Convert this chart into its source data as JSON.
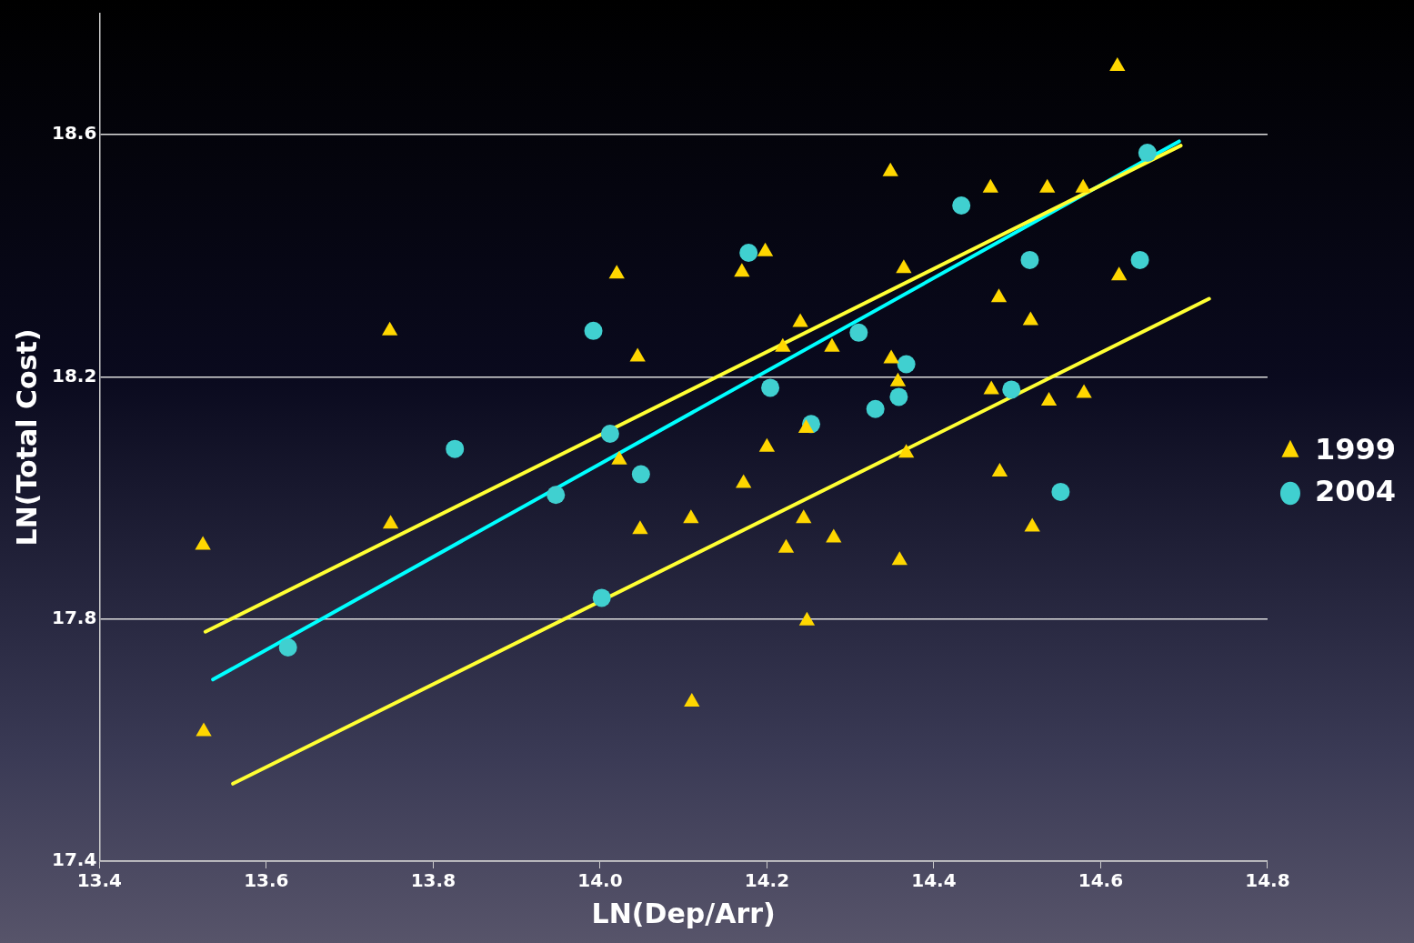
{
  "chart_data": {
    "type": "scatter",
    "xlabel": "LN(Dep/Arr)",
    "ylabel": "LN(Total Cost)",
    "xlim": [
      13.4,
      14.8
    ],
    "ylim": [
      17.4,
      18.8
    ],
    "xticks": [
      13.4,
      13.6,
      13.8,
      {
        "value": 14,
        "label": "14.0"
      },
      14.2,
      14.4,
      14.6,
      14.8
    ],
    "yticks": [
      17.4,
      17.8,
      18.2,
      18.6
    ],
    "grid": "y",
    "legend": "right",
    "series": [
      {
        "name": "1999",
        "color": "#ffd700",
        "marker": "triangle",
        "x": [
          13.524,
          13.525,
          13.748,
          13.749,
          14.02,
          14.023,
          14.045,
          14.048,
          14.109,
          14.11,
          14.17,
          14.172,
          14.198,
          14.2,
          14.219,
          14.223,
          14.24,
          14.244,
          14.247,
          14.248,
          14.278,
          14.28,
          14.348,
          14.349,
          14.357,
          14.359,
          14.364,
          14.367,
          14.468,
          14.469,
          14.478,
          14.479,
          14.516,
          14.518,
          14.536,
          14.538,
          14.579,
          14.58,
          14.62,
          14.622
        ],
        "values": [
          17.922,
          17.614,
          18.276,
          17.957,
          18.37,
          18.063,
          18.233,
          17.948,
          17.966,
          17.663,
          18.373,
          18.024,
          18.407,
          18.084,
          18.249,
          17.917,
          18.29,
          17.966,
          18.115,
          17.797,
          18.249,
          17.934,
          18.539,
          18.23,
          18.192,
          17.897,
          18.379,
          18.074,
          18.512,
          18.179,
          18.331,
          18.043,
          18.293,
          17.952,
          18.512,
          18.16,
          18.512,
          18.173,
          18.713,
          18.367
        ]
      },
      {
        "name": "2004",
        "color": "#40d0d0",
        "marker": "circle",
        "x": [
          13.626,
          13.826,
          13.947,
          13.992,
          14.002,
          14.012,
          14.049,
          14.178,
          14.204,
          14.253,
          14.31,
          14.33,
          14.358,
          14.367,
          14.433,
          14.493,
          14.515,
          14.552,
          14.647,
          14.656
        ],
        "values": [
          17.753,
          18.081,
          18.005,
          18.276,
          17.835,
          18.106,
          18.039,
          18.405,
          18.182,
          18.122,
          18.273,
          18.147,
          18.167,
          18.221,
          18.483,
          18.179,
          18.393,
          18.01,
          18.393,
          18.57
        ]
      },
      {
        "type": "line",
        "color": "#ffff33",
        "marker": "none",
        "x": [
          13.527,
          14.696
        ],
        "values": [
          17.779,
          18.582
        ]
      },
      {
        "type": "line",
        "color": "#ffff33",
        "marker": "none",
        "x": [
          13.56,
          14.73
        ],
        "values": [
          17.528,
          18.329
        ]
      },
      {
        "type": "line",
        "color": "#00ffff",
        "marker": "none",
        "x": [
          13.536,
          14.694
        ],
        "values": [
          17.7,
          18.589
        ]
      }
    ]
  }
}
